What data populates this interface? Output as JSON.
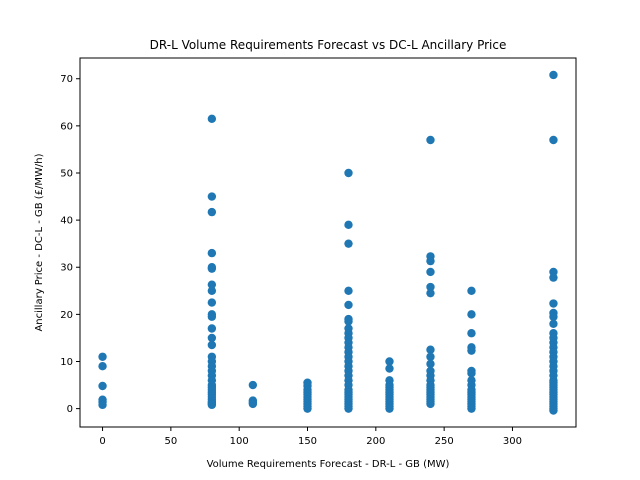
{
  "chart_data": {
    "type": "scatter",
    "title": "DR-L Volume Requirements Forecast vs DC-L Ancillary Price",
    "xlabel": "Volume Requirements Forecast - DR-L - GB (MW)",
    "ylabel": "Ancillary Price - DC-L - GB (£/MW/h)",
    "xlim": [
      -16.5,
      346.5
    ],
    "ylim": [
      -3.9,
      74.4
    ],
    "xticks": [
      0,
      50,
      100,
      150,
      200,
      250,
      300
    ],
    "yticks": [
      0,
      10,
      20,
      30,
      40,
      50,
      60,
      70
    ],
    "grid": false,
    "marker_color": "#1f77b4",
    "series": [
      {
        "name": "",
        "points": [
          [
            0,
            11.0
          ],
          [
            0,
            9.0
          ],
          [
            0,
            4.8
          ],
          [
            0,
            1.9
          ],
          [
            0,
            1.4
          ],
          [
            0,
            0.8
          ],
          [
            80,
            61.5
          ],
          [
            80,
            45.0
          ],
          [
            80,
            41.7
          ],
          [
            80,
            33.0
          ],
          [
            80,
            30.0
          ],
          [
            80,
            29.7
          ],
          [
            80,
            26.3
          ],
          [
            80,
            25.0
          ],
          [
            80,
            22.5
          ],
          [
            80,
            20.0
          ],
          [
            80,
            19.5
          ],
          [
            80,
            17.0
          ],
          [
            80,
            15.0
          ],
          [
            80,
            13.5
          ],
          [
            80,
            11.0
          ],
          [
            80,
            10.0
          ],
          [
            80,
            9.0
          ],
          [
            80,
            8.0
          ],
          [
            80,
            7.0
          ],
          [
            80,
            6.0
          ],
          [
            80,
            5.0
          ],
          [
            80,
            4.5
          ],
          [
            80,
            4.0
          ],
          [
            80,
            3.5
          ],
          [
            80,
            3.0
          ],
          [
            80,
            2.5
          ],
          [
            80,
            2.0
          ],
          [
            80,
            1.5
          ],
          [
            80,
            1.2
          ],
          [
            80,
            1.0
          ],
          [
            80,
            0.8
          ],
          [
            110,
            5.0
          ],
          [
            110,
            1.7
          ],
          [
            110,
            1.3
          ],
          [
            110,
            1.0
          ],
          [
            150,
            5.5
          ],
          [
            150,
            4.8
          ],
          [
            150,
            4.0
          ],
          [
            150,
            3.5
          ],
          [
            150,
            3.0
          ],
          [
            150,
            2.5
          ],
          [
            150,
            2.0
          ],
          [
            150,
            1.5
          ],
          [
            150,
            1.0
          ],
          [
            150,
            0.5
          ],
          [
            150,
            0.0
          ],
          [
            180,
            50.0
          ],
          [
            180,
            39.0
          ],
          [
            180,
            35.0
          ],
          [
            180,
            25.0
          ],
          [
            180,
            22.0
          ],
          [
            180,
            19.0
          ],
          [
            180,
            18.5
          ],
          [
            180,
            17.0
          ],
          [
            180,
            16.0
          ],
          [
            180,
            15.0
          ],
          [
            180,
            14.0
          ],
          [
            180,
            13.0
          ],
          [
            180,
            12.0
          ],
          [
            180,
            11.0
          ],
          [
            180,
            10.0
          ],
          [
            180,
            9.0
          ],
          [
            180,
            8.0
          ],
          [
            180,
            7.0
          ],
          [
            180,
            6.0
          ],
          [
            180,
            5.0
          ],
          [
            180,
            4.0
          ],
          [
            180,
            3.5
          ],
          [
            180,
            3.0
          ],
          [
            180,
            2.5
          ],
          [
            180,
            2.0
          ],
          [
            180,
            1.5
          ],
          [
            180,
            1.0
          ],
          [
            180,
            0.5
          ],
          [
            180,
            0.0
          ],
          [
            210,
            10.0
          ],
          [
            210,
            8.5
          ],
          [
            210,
            6.0
          ],
          [
            210,
            5.0
          ],
          [
            210,
            4.5
          ],
          [
            210,
            4.0
          ],
          [
            210,
            3.5
          ],
          [
            210,
            3.0
          ],
          [
            210,
            2.5
          ],
          [
            210,
            2.0
          ],
          [
            210,
            1.5
          ],
          [
            210,
            1.0
          ],
          [
            210,
            0.5
          ],
          [
            210,
            0.0
          ],
          [
            240,
            57.0
          ],
          [
            240,
            32.3
          ],
          [
            240,
            31.3
          ],
          [
            240,
            29.0
          ],
          [
            240,
            25.8
          ],
          [
            240,
            24.5
          ],
          [
            240,
            12.5
          ],
          [
            240,
            11.0
          ],
          [
            240,
            9.5
          ],
          [
            240,
            8.0
          ],
          [
            240,
            7.0
          ],
          [
            240,
            6.0
          ],
          [
            240,
            5.0
          ],
          [
            240,
            4.5
          ],
          [
            240,
            4.0
          ],
          [
            240,
            3.5
          ],
          [
            240,
            3.0
          ],
          [
            240,
            2.5
          ],
          [
            240,
            2.0
          ],
          [
            240,
            1.5
          ],
          [
            240,
            1.0
          ],
          [
            270,
            25.0
          ],
          [
            270,
            20.0
          ],
          [
            270,
            16.0
          ],
          [
            270,
            13.0
          ],
          [
            270,
            12.3
          ],
          [
            270,
            8.0
          ],
          [
            270,
            7.5
          ],
          [
            270,
            6.0
          ],
          [
            270,
            5.0
          ],
          [
            270,
            4.0
          ],
          [
            270,
            3.5
          ],
          [
            270,
            3.0
          ],
          [
            270,
            2.5
          ],
          [
            270,
            2.0
          ],
          [
            270,
            1.5
          ],
          [
            270,
            1.0
          ],
          [
            270,
            0.5
          ],
          [
            270,
            0.0
          ],
          [
            330,
            70.8
          ],
          [
            330,
            57.0
          ],
          [
            330,
            29.0
          ],
          [
            330,
            27.8
          ],
          [
            330,
            22.3
          ],
          [
            330,
            20.3
          ],
          [
            330,
            19.5
          ],
          [
            330,
            18.0
          ],
          [
            330,
            16.0
          ],
          [
            330,
            15.0
          ],
          [
            330,
            14.0
          ],
          [
            330,
            13.0
          ],
          [
            330,
            12.0
          ],
          [
            330,
            11.0
          ],
          [
            330,
            10.0
          ],
          [
            330,
            9.0
          ],
          [
            330,
            8.0
          ],
          [
            330,
            7.0
          ],
          [
            330,
            6.0
          ],
          [
            330,
            5.5
          ],
          [
            330,
            5.0
          ],
          [
            330,
            4.5
          ],
          [
            330,
            4.0
          ],
          [
            330,
            3.5
          ],
          [
            330,
            3.0
          ],
          [
            330,
            2.5
          ],
          [
            330,
            2.0
          ],
          [
            330,
            1.5
          ],
          [
            330,
            1.0
          ],
          [
            330,
            0.5
          ],
          [
            330,
            0.0
          ],
          [
            330,
            -0.4
          ]
        ]
      }
    ]
  }
}
